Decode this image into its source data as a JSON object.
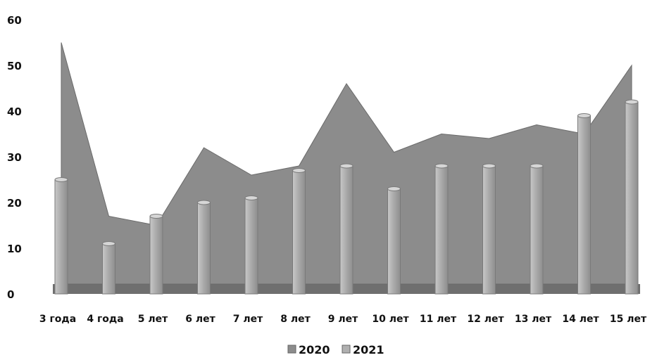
{
  "chart_data": {
    "type": "area",
    "categories": [
      "3 года",
      "4 года",
      "5 лет",
      "6 лет",
      "7 лет",
      "8 лет",
      "9 лет",
      "10 лет",
      "11 лет",
      "12 лет",
      "13 лет",
      "14 лет",
      "15 лет"
    ],
    "series": [
      {
        "name": "2020",
        "type": "area",
        "values": [
          55,
          17,
          15,
          32,
          26,
          28,
          46,
          31,
          35,
          34,
          37,
          35,
          50
        ],
        "color": "#8c8c8c"
      },
      {
        "name": "2021",
        "type": "bar",
        "values": [
          25,
          11,
          17,
          20,
          21,
          27,
          28,
          23,
          28,
          28,
          28,
          39,
          42
        ],
        "color": "#b0b0b0"
      }
    ],
    "yticks": [
      0,
      10,
      20,
      30,
      40,
      50,
      60
    ],
    "ylim": [
      0,
      60
    ],
    "legend_position": "bottom",
    "grid": false
  }
}
